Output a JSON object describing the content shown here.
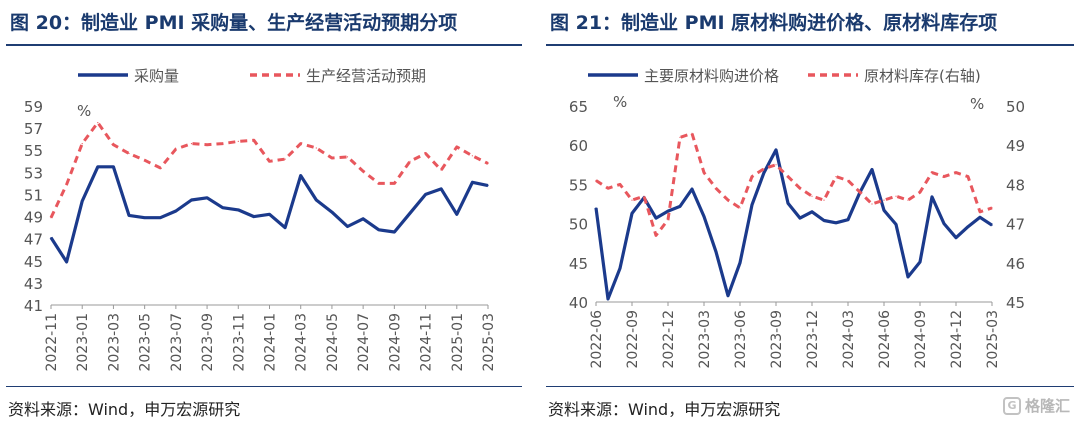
{
  "left_panel": {
    "title": "图 20：制造业 PMI 采购量、生产经营活动预期分项",
    "source": "资料来源：Wind，申万宏源研究"
  },
  "right_panel": {
    "title": "图 21：制造业 PMI 原材料购进价格、原材料库存项",
    "source": "资料来源：Wind，申万宏源研究"
  },
  "watermark": {
    "badge": "G",
    "text": "格隆汇"
  },
  "colors": {
    "navy": "#1b3a8c",
    "red_dashed": "#e8575d",
    "title": "#1a3a6e",
    "axis": "#555555"
  },
  "chart_data": [
    {
      "type": "line",
      "title": "",
      "unit_label": "%",
      "legend_position": "top",
      "grid": false,
      "ylim": [
        41,
        59
      ],
      "yticks": [
        41,
        43,
        45,
        47,
        49,
        51,
        53,
        55,
        57,
        59
      ],
      "x": [
        "2022-11",
        "2022-12",
        "2023-01",
        "2023-02",
        "2023-03",
        "2023-04",
        "2023-05",
        "2023-06",
        "2023-07",
        "2023-08",
        "2023-09",
        "2023-10",
        "2023-11",
        "2023-12",
        "2024-01",
        "2024-02",
        "2024-03",
        "2024-04",
        "2024-05",
        "2024-06",
        "2024-07",
        "2024-08",
        "2024-09",
        "2024-10",
        "2024-11",
        "2024-12",
        "2025-01",
        "2025-02",
        "2025-03"
      ],
      "xticks": [
        "2022-11",
        "2023-01",
        "2023-03",
        "2023-05",
        "2023-07",
        "2023-09",
        "2023-11",
        "2024-01",
        "2024-03",
        "2024-05",
        "2024-07",
        "2024-09",
        "2024-11",
        "2025-01",
        "2025-03"
      ],
      "series": [
        {
          "name": "采购量",
          "style": "solid",
          "axis": "left",
          "values": [
            47.1,
            44.9,
            50.4,
            53.5,
            53.5,
            49.1,
            48.9,
            48.9,
            49.5,
            50.5,
            50.7,
            49.8,
            49.6,
            49.0,
            49.2,
            48.0,
            52.7,
            50.5,
            49.4,
            48.1,
            48.8,
            47.8,
            47.6,
            49.3,
            51.0,
            51.5,
            49.2,
            52.1,
            51.8
          ]
        },
        {
          "name": "生产经营活动预期",
          "style": "dashed",
          "axis": "left",
          "values": [
            48.9,
            51.9,
            55.6,
            57.5,
            55.5,
            54.7,
            54.1,
            53.4,
            55.1,
            55.6,
            55.5,
            55.6,
            55.8,
            55.9,
            54.0,
            54.2,
            55.6,
            55.2,
            54.3,
            54.4,
            53.1,
            52.0,
            52.0,
            54.0,
            54.7,
            53.2,
            55.3,
            54.5,
            53.8
          ]
        }
      ]
    },
    {
      "type": "line",
      "title": "",
      "unit_label_left": "%",
      "unit_label_right": "%",
      "legend_position": "top",
      "grid": false,
      "ylim_left": [
        40,
        65
      ],
      "yticks_left": [
        40,
        45,
        50,
        55,
        60,
        65
      ],
      "ylim_right": [
        45,
        50
      ],
      "yticks_right": [
        45,
        46,
        47,
        48,
        49,
        50
      ],
      "x": [
        "2022-06",
        "2022-07",
        "2022-08",
        "2022-09",
        "2022-10",
        "2022-11",
        "2022-12",
        "2023-01",
        "2023-02",
        "2023-03",
        "2023-04",
        "2023-05",
        "2023-06",
        "2023-07",
        "2023-08",
        "2023-09",
        "2023-10",
        "2023-11",
        "2023-12",
        "2024-01",
        "2024-02",
        "2024-03",
        "2024-04",
        "2024-05",
        "2024-06",
        "2024-07",
        "2024-08",
        "2024-09",
        "2024-10",
        "2024-11",
        "2024-12",
        "2025-01",
        "2025-02",
        "2025-03"
      ],
      "xticks": [
        "2022-06",
        "2022-09",
        "2022-12",
        "2023-03",
        "2023-06",
        "2023-09",
        "2023-12",
        "2024-03",
        "2024-06",
        "2024-09",
        "2024-12",
        "2025-03"
      ],
      "series": [
        {
          "name": "主要原材料购进价格",
          "style": "solid",
          "axis": "left",
          "values": [
            52.0,
            40.4,
            44.3,
            51.3,
            53.3,
            50.7,
            51.6,
            52.2,
            54.4,
            50.9,
            46.4,
            40.8,
            45.0,
            52.4,
            56.5,
            59.4,
            52.6,
            50.7,
            51.5,
            50.4,
            50.1,
            50.5,
            54.0,
            56.9,
            51.7,
            49.9,
            43.2,
            45.1,
            53.4,
            50.0,
            48.2,
            49.6,
            50.8,
            49.8
          ]
        },
        {
          "name": "原材料库存(右轴)",
          "style": "dashed",
          "axis": "right",
          "values": [
            48.1,
            47.9,
            48.0,
            47.6,
            47.7,
            46.7,
            47.1,
            49.2,
            49.3,
            48.3,
            47.9,
            47.6,
            47.4,
            48.2,
            48.4,
            48.5,
            48.2,
            47.9,
            47.7,
            47.6,
            48.2,
            48.1,
            47.8,
            47.5,
            47.6,
            47.7,
            47.6,
            47.8,
            48.3,
            48.2,
            48.3,
            48.2,
            47.3,
            47.4
          ]
        }
      ]
    }
  ]
}
